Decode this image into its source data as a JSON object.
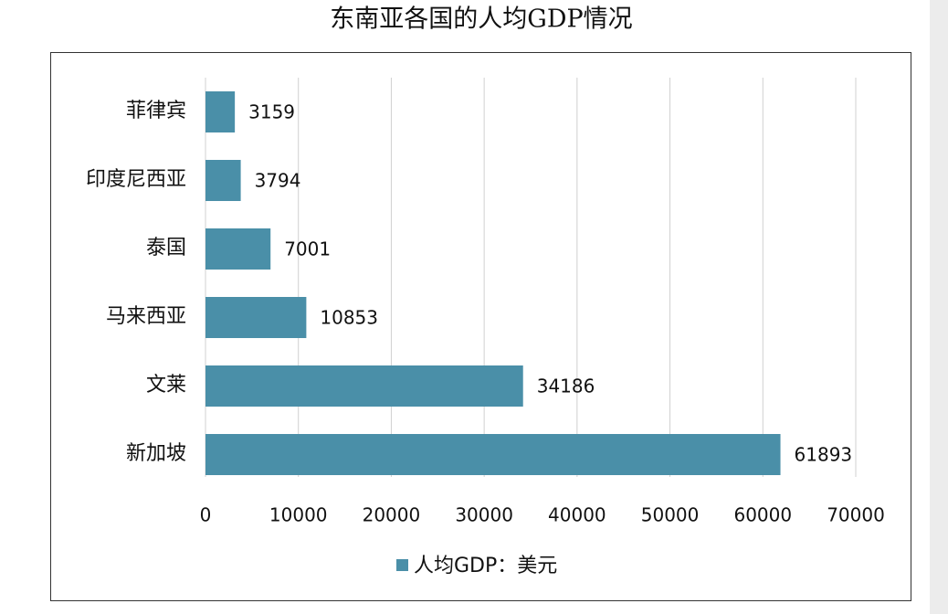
{
  "chart_data": {
    "type": "bar",
    "orientation": "horizontal",
    "title": "东南亚各国的人均GDP情况",
    "categories": [
      "菲律宾",
      "印度尼西亚",
      "泰国",
      "马来西亚",
      "文莱",
      "新加坡"
    ],
    "series": [
      {
        "name": "人均GDP：美元",
        "color": "#4a8fa8",
        "values": [
          3159,
          3794,
          7001,
          10853,
          34186,
          61893
        ]
      }
    ],
    "xlim": [
      0,
      70000
    ],
    "xticks": [
      0,
      10000,
      20000,
      30000,
      40000,
      50000,
      60000,
      70000
    ],
    "grid": true,
    "legend": "bottom"
  }
}
